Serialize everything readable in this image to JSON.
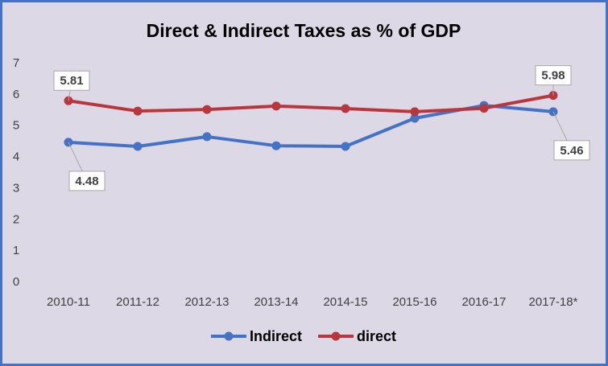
{
  "chart_data": {
    "type": "line",
    "title": "Direct & Indirect Taxes as % of GDP",
    "categories": [
      "2010-11",
      "2011-12",
      "2012-13",
      "2013-14",
      "2014-15",
      "2015-16",
      "2016-17",
      "2017-18*"
    ],
    "series": [
      {
        "name": "Indirect",
        "color": "#4472c4",
        "values": [
          4.48,
          4.35,
          4.66,
          4.37,
          4.35,
          5.25,
          5.66,
          5.46
        ],
        "value_labels": [
          "4.48",
          null,
          null,
          null,
          null,
          null,
          null,
          "5.46"
        ]
      },
      {
        "name": "direct",
        "color": "#b8373d",
        "values": [
          5.81,
          5.48,
          5.53,
          5.64,
          5.56,
          5.46,
          5.57,
          5.98
        ],
        "value_labels": [
          "5.81",
          null,
          null,
          null,
          null,
          null,
          null,
          "5.98"
        ]
      }
    ],
    "ylim": [
      0,
      7
    ],
    "yticks": [
      0,
      1,
      2,
      3,
      4,
      5,
      6,
      7
    ],
    "grid": false,
    "legend": "bottom"
  }
}
